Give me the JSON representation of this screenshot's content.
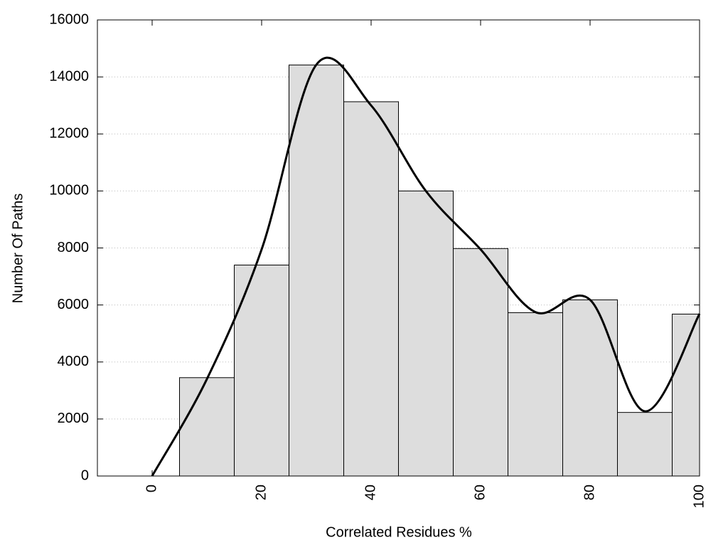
{
  "chart_data": {
    "type": "histogram",
    "xlabel": "Correlated Residues %",
    "ylabel": "Number Of Paths",
    "bins": [
      5,
      15,
      25,
      35,
      45,
      55,
      65,
      75,
      85,
      95,
      100
    ],
    "values": [
      3450,
      7400,
      14420,
      13130,
      10000,
      7980,
      5730,
      6180,
      2230,
      5680
    ],
    "color": "#dddddd",
    "line": {
      "x": [
        0,
        10,
        20,
        30,
        40,
        50,
        60,
        70,
        80,
        90,
        100
      ],
      "values": [
        0,
        3400,
        7950,
        14430,
        13000,
        10000,
        7950,
        5750,
        6180,
        2270,
        5690
      ],
      "color": "#000000"
    },
    "xlim": [
      -10,
      100
    ],
    "ylim": [
      0,
      16000
    ],
    "xticks": [
      0,
      20,
      40,
      60,
      80,
      100
    ],
    "yticks": [
      0,
      2000,
      4000,
      6000,
      8000,
      10000,
      12000,
      14000,
      16000
    ],
    "grid": true
  }
}
